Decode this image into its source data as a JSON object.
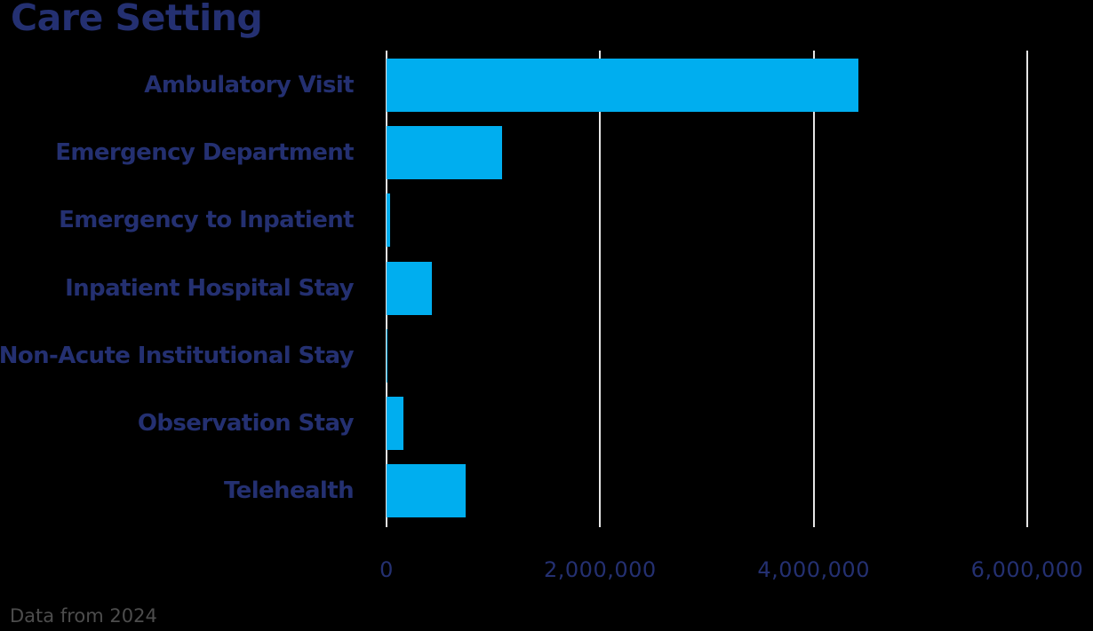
{
  "chart_data": {
    "type": "bar",
    "orientation": "horizontal",
    "title": "Care Setting",
    "xlabel": "",
    "ylabel": "",
    "categories": [
      "Ambulatory Visit",
      "Emergency Department",
      "Emergency to Inpatient",
      "Inpatient Hospital Stay",
      "Non-Acute Institutional Stay",
      "Observation Stay",
      "Telehealth"
    ],
    "values": [
      4420000,
      1080000,
      33000,
      425000,
      8000,
      160000,
      740000
    ],
    "xlim": [
      0,
      6000000
    ],
    "x_ticks": [
      0,
      2000000,
      4000000,
      6000000
    ],
    "x_tick_labels": [
      "0",
      "2,000,000",
      "4,000,000",
      "6,000,000"
    ],
    "grid": "vertical",
    "legend": "none",
    "bar_color": "#00AEEF",
    "footnote": "Data from 2024"
  },
  "colors": {
    "background": "#000000",
    "bar": "#00AEEF",
    "text": "#243071",
    "grid": "#E6E6E6",
    "footnote": "#4D4D4D"
  }
}
